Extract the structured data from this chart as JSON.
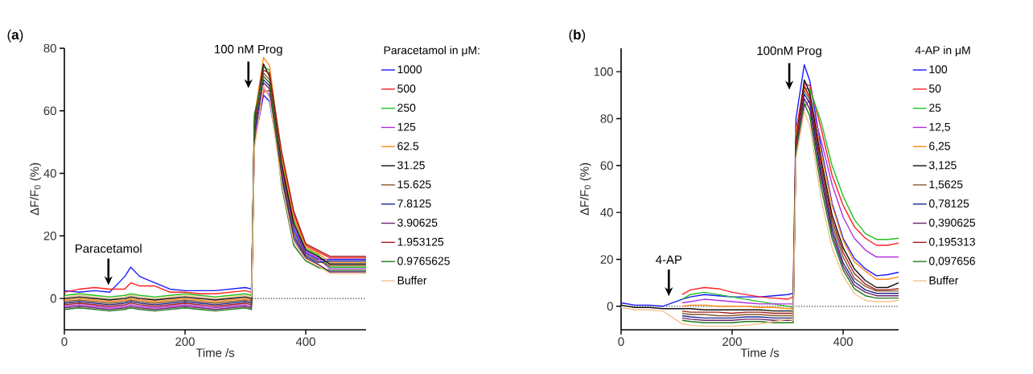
{
  "chart_data": [
    {
      "type": "line",
      "title": "(**a**)",
      "xlabel": "Time /s",
      "ylabel": "ΔF/F$_{0}$ (%)",
      "legend_title": "Paracetamol in μM:",
      "legend": "right",
      "xlim": [
        0,
        500
      ],
      "ylim": [
        -10,
        80
      ],
      "xticks": [
        0,
        200,
        400
      ],
      "yticks": [
        0,
        20,
        40,
        60,
        80
      ],
      "x": [
        0,
        25,
        50,
        75,
        100,
        110,
        125,
        150,
        175,
        200,
        225,
        250,
        275,
        300,
        310,
        315,
        330,
        340,
        360,
        380,
        400,
        420,
        440,
        460,
        480,
        500
      ],
      "ref_lines": [
        {
          "axis": "y",
          "value": 0,
          "line_style": "dotted"
        }
      ],
      "annotations": [
        "Paracetamol",
        "100 nM Prog"
      ],
      "series": [
        {
          "name": "1000",
          "color": "#1a1aff",
          "values": [
            2.5,
            2,
            2.5,
            2,
            7,
            10,
            7,
            5,
            3,
            2.5,
            2.5,
            2.5,
            3,
            3.5,
            3,
            50,
            65,
            63,
            40,
            22,
            14.5,
            12.5,
            12.5,
            12.5,
            12.5,
            12.5
          ]
        },
        {
          "name": "500",
          "color": "#ff2020",
          "values": [
            2,
            3,
            3.5,
            3,
            3,
            5,
            4,
            4,
            2,
            2,
            1.5,
            1.5,
            2,
            2.5,
            2,
            51,
            66,
            66.5,
            46,
            27,
            17,
            15,
            13,
            13,
            13,
            13
          ]
        },
        {
          "name": "250",
          "color": "#22c022",
          "values": [
            1,
            1.5,
            1,
            0.5,
            1,
            1.5,
            1,
            0.5,
            1,
            1.5,
            1,
            0.5,
            1,
            1.5,
            1,
            55,
            74,
            73,
            44,
            25,
            16,
            14,
            10,
            10,
            10,
            10
          ]
        },
        {
          "name": "125",
          "color": "#b030e0",
          "values": [
            -2.5,
            -2,
            -2.5,
            -3,
            -2.5,
            -2,
            -2.5,
            -3,
            -2.5,
            -2,
            -2.5,
            -3,
            -2.5,
            -2,
            -2.5,
            52,
            67,
            65,
            42,
            23,
            15,
            13,
            9.5,
            9.5,
            9.5,
            9.5
          ]
        },
        {
          "name": "62.5",
          "color": "#ff8c1a",
          "values": [
            -0.5,
            0,
            -0.5,
            -1,
            -0.5,
            0,
            -0.5,
            -1,
            -0.5,
            0,
            -0.5,
            -1,
            -0.5,
            0,
            -0.5,
            58,
            77,
            74.5,
            45,
            26,
            16.5,
            14.5,
            11.5,
            11.5,
            11.5,
            11.5
          ]
        },
        {
          "name": "31.25",
          "color": "#111111",
          "values": [
            0,
            0.5,
            0,
            -0.5,
            0,
            0.5,
            0,
            -0.5,
            0,
            0.5,
            0,
            -0.5,
            0,
            0.5,
            0,
            56,
            75,
            71,
            43,
            24,
            15.5,
            13.5,
            11,
            11,
            11,
            11
          ]
        },
        {
          "name": "15.625",
          "color": "#8b5a2b",
          "values": [
            -1,
            -0.5,
            -1,
            -1.5,
            -1,
            -0.5,
            -1,
            -1.5,
            -1,
            -0.5,
            -1,
            -1.5,
            -1,
            -0.5,
            -1,
            54,
            72,
            70,
            41,
            21,
            14,
            12,
            10.5,
            10.5,
            10.5,
            10.5
          ]
        },
        {
          "name": "7.8125",
          "color": "#1f2a8c",
          "values": [
            -1.5,
            -1,
            -1.5,
            -2,
            -1.5,
            -1,
            -1.5,
            -2,
            -1.5,
            -1,
            -1.5,
            -2,
            -1.5,
            -1,
            -1.5,
            53,
            70,
            68,
            39,
            20,
            13.5,
            11.5,
            12,
            12,
            12,
            12
          ]
        },
        {
          "name": "3.90625",
          "color": "#6a1f6a",
          "values": [
            -3,
            -2.5,
            -3,
            -3.5,
            -3,
            -2.5,
            -3,
            -3.5,
            -3,
            -2.5,
            -3,
            -3.5,
            -3,
            -2.5,
            -3,
            49,
            69,
            67,
            38,
            19,
            13,
            11,
            8.5,
            8.5,
            8.5,
            8.5
          ]
        },
        {
          "name": "1.953125",
          "color": "#a01c1c",
          "values": [
            -2,
            -1.5,
            -2,
            -2.5,
            -2,
            -1.5,
            -2,
            -2.5,
            -2,
            -1.5,
            -2,
            -2.5,
            -2,
            -1.5,
            -2,
            57,
            73,
            72,
            47,
            28,
            17.5,
            15.5,
            13.5,
            13.5,
            13.5,
            13.5
          ]
        },
        {
          "name": "0.9765625",
          "color": "#1e7a1e",
          "values": [
            -3.5,
            -3,
            -3.5,
            -4,
            -3.5,
            -3,
            -3.5,
            -4,
            -3.5,
            -3,
            -3.5,
            -4,
            -3.5,
            -3,
            -3.5,
            59,
            71,
            69,
            36,
            17,
            12,
            10,
            9,
            9,
            9,
            9
          ]
        },
        {
          "name": "Buffer",
          "color": "#f5c28e",
          "values": [
            0.5,
            1,
            0.5,
            0,
            0.5,
            1,
            0.5,
            0,
            0.5,
            1,
            0.5,
            0,
            0.5,
            1,
            0.5,
            48,
            68,
            64,
            37,
            18,
            12.5,
            10.5,
            8,
            8,
            8,
            8
          ]
        }
      ]
    },
    {
      "type": "line",
      "title": "(**b**)",
      "xlabel": "Time /s",
      "ylabel": "ΔF/F$_{0}$ (%)",
      "legend_title": "4-AP in μM",
      "legend": "right",
      "xlim": [
        0,
        500
      ],
      "ylim": [
        -10,
        110
      ],
      "xticks": [
        0,
        200,
        400
      ],
      "yticks": [
        0,
        20,
        40,
        60,
        80,
        100
      ],
      "x": [
        0,
        25,
        50,
        75,
        110,
        125,
        150,
        175,
        200,
        225,
        250,
        275,
        300,
        310,
        315,
        330,
        340,
        360,
        380,
        400,
        420,
        440,
        460,
        480,
        500
      ],
      "ref_lines": [
        {
          "axis": "y",
          "value": 0,
          "line_style": "dotted"
        }
      ],
      "annotations": [
        "4-AP",
        "100nM Prog"
      ],
      "series": [
        {
          "name": "100",
          "color": "#1a1aff",
          "values": [
            1.5,
            0.5,
            0.5,
            0,
            3,
            4,
            5,
            4.5,
            4,
            4,
            4,
            4.5,
            5,
            5.5,
            80,
            103,
            96,
            68,
            44,
            29,
            20.5,
            16,
            13,
            13.5,
            14.5
          ]
        },
        {
          "name": "50",
          "color": "#ff2020",
          "values": [
            null,
            null,
            null,
            null,
            5,
            7,
            8,
            7.5,
            6,
            5,
            4,
            3.5,
            3,
            4,
            75,
            95,
            94,
            76,
            56,
            43,
            34,
            29,
            26,
            26,
            27
          ]
        },
        {
          "name": "25",
          "color": "#22c022",
          "values": [
            null,
            null,
            null,
            null,
            3,
            5,
            6,
            5,
            4,
            3,
            2,
            1,
            0,
            -0.5,
            72,
            93,
            92.5,
            79,
            60,
            47,
            37,
            31,
            28.5,
            28.5,
            29
          ]
        },
        {
          "name": "12,5",
          "color": "#b030e0",
          "values": [
            null,
            null,
            null,
            null,
            1.5,
            2,
            3,
            2.5,
            2,
            1.5,
            1,
            1,
            1,
            1,
            65,
            85,
            88,
            71,
            52,
            38,
            29,
            24,
            21,
            21,
            21
          ]
        },
        {
          "name": "6,25",
          "color": "#ff8c1a",
          "values": [
            null,
            null,
            null,
            null,
            0,
            0.5,
            0.5,
            0,
            0,
            0,
            -0.5,
            -0.5,
            -1,
            -1,
            73.5,
            93,
            90,
            66,
            43,
            28,
            19,
            15,
            11.5,
            11.5,
            12.5
          ]
        },
        {
          "name": "3,125",
          "color": "#111111",
          "values": [
            0.5,
            -0.5,
            -0.5,
            -1,
            -1,
            -1,
            -1.5,
            -1.5,
            -1.5,
            -1.5,
            -1.5,
            -2,
            -2,
            -2,
            70,
            96.5,
            91,
            63,
            39,
            25,
            16,
            11,
            8,
            8,
            10
          ]
        },
        {
          "name": "1,5625",
          "color": "#8b5a2b",
          "values": [
            null,
            null,
            null,
            null,
            -3,
            -3.5,
            -3.5,
            -4,
            -4,
            -3.5,
            -3.5,
            -4,
            -4,
            -4,
            68.5,
            92,
            88,
            59,
            35,
            21,
            12,
            8.5,
            6.5,
            6.5,
            6.5
          ]
        },
        {
          "name": "0,78125",
          "color": "#1f2a8c",
          "values": [
            null,
            null,
            null,
            null,
            -4,
            -4.5,
            -5,
            -5,
            -5,
            -4.5,
            -4.5,
            -5,
            -5,
            -5,
            71,
            90.5,
            86.5,
            57,
            33,
            18.5,
            10.5,
            7,
            5.5,
            5.5,
            5.5
          ]
        },
        {
          "name": "0,390625",
          "color": "#6a1f6a",
          "values": [
            null,
            null,
            null,
            null,
            -5,
            -5.5,
            -6,
            -6,
            -6,
            -5.5,
            -5.5,
            -6,
            -6,
            -6,
            67,
            88.5,
            84,
            54.5,
            31,
            17,
            9,
            6,
            4.5,
            4.5,
            4.5
          ]
        },
        {
          "name": "0,195313",
          "color": "#a01c1c",
          "values": [
            null,
            null,
            null,
            null,
            -2,
            -2.5,
            -2.5,
            -2.5,
            -3,
            -2.5,
            -2.5,
            -3,
            -3,
            -3,
            69.5,
            94,
            89,
            61,
            37,
            23,
            14,
            9.5,
            7,
            7,
            7.5
          ]
        },
        {
          "name": "0,097656",
          "color": "#1e7a1e",
          "values": [
            null,
            null,
            null,
            null,
            -6,
            -6.5,
            -7,
            -7,
            -7,
            -6.5,
            -6.5,
            -7,
            -7,
            -7,
            66,
            86.5,
            81,
            51,
            29,
            15.5,
            7.5,
            4.5,
            3.5,
            3.5,
            3.5
          ]
        },
        {
          "name": "Buffer",
          "color": "#f5c28e",
          "values": [
            -0.5,
            -1.5,
            -1.5,
            -2,
            -7.5,
            -8,
            -8.5,
            -8.5,
            -8.5,
            -8,
            -7.5,
            -6.5,
            -5.5,
            -6,
            63,
            83,
            77,
            46,
            25,
            13,
            5.5,
            2.5,
            2,
            2,
            2.5
          ]
        }
      ]
    }
  ]
}
